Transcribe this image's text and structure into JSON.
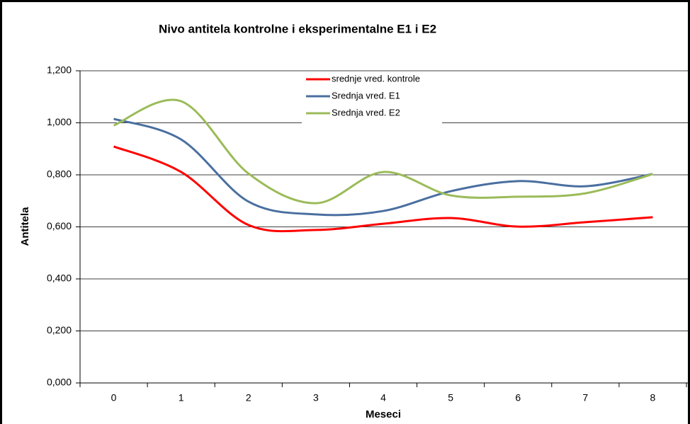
{
  "chart_data": {
    "type": "line",
    "title": "Nivo antitela kontrolne i eksperimentalne  E1 i E2",
    "x_label": "Meseci",
    "y_label": "Antitela",
    "categories": [
      "0",
      "1",
      "2",
      "3",
      "4",
      "5",
      "6",
      "7",
      "8"
    ],
    "series": [
      {
        "name": "srednje vred. kontrole",
        "color": "#ff0000",
        "values": [
          0.909,
          0.811,
          0.607,
          0.588,
          0.612,
          0.634,
          0.601,
          0.618,
          0.637
        ]
      },
      {
        "name": "Srednja vred. E1",
        "color": "#4a6fa0",
        "values": [
          1.015,
          0.936,
          0.697,
          0.648,
          0.661,
          0.737,
          0.776,
          0.756,
          0.803
        ]
      },
      {
        "name": "Srednja vred. E2",
        "color": "#9bbb59",
        "values": [
          0.99,
          1.083,
          0.805,
          0.691,
          0.811,
          0.721,
          0.716,
          0.729,
          0.803
        ]
      }
    ],
    "ylim": [
      0,
      1.2
    ],
    "yticks": [
      {
        "value": 0,
        "label": "0,000"
      },
      {
        "value": 0.2,
        "label": "0,200"
      },
      {
        "value": 0.4,
        "label": "0,400"
      },
      {
        "value": 0.6,
        "label": "0,600"
      },
      {
        "value": 0.8,
        "label": "0,800"
      },
      {
        "value": 1.0,
        "label": "1,000"
      },
      {
        "value": 1.2,
        "label": "1,200"
      }
    ],
    "grid": true,
    "smooth": true,
    "legend": "top"
  }
}
